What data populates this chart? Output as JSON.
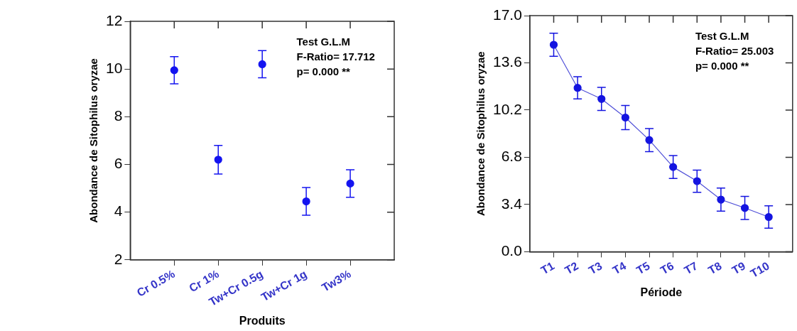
{
  "chart_data": [
    {
      "type": "scatter",
      "xlabel": "Produits",
      "ylabel": "Abondance de Sitophilus oryzae",
      "categories": [
        "Cr 0.5%",
        "Cr 1%",
        "Tw+Cr 0.5g",
        "Tw+Cr 1g",
        "Tw3%"
      ],
      "values": [
        9.95,
        6.2,
        10.2,
        4.45,
        5.2
      ],
      "errors": [
        0.57,
        0.6,
        0.57,
        0.58,
        0.58
      ],
      "color": "#1414f0",
      "ylim": [
        2,
        12
      ],
      "yticks": [
        2,
        4,
        6,
        8,
        10,
        12
      ],
      "grid": false,
      "legend": false,
      "marker": "circle",
      "annotations": [
        "Test G.L.M",
        "F-Ratio= 17.712",
        "p= 0.000 **"
      ]
    },
    {
      "type": "line",
      "xlabel": "Période",
      "ylabel": "Abondance de Sitophilus oryzae",
      "categories": [
        "T1",
        "T2",
        "T3",
        "T4",
        "T5",
        "T6",
        "T7",
        "T8",
        "T9",
        "T10"
      ],
      "values": [
        14.9,
        11.8,
        11.0,
        9.66,
        8.04,
        6.1,
        5.08,
        3.75,
        3.15,
        2.5
      ],
      "errors": [
        0.83,
        0.8,
        0.83,
        0.87,
        0.83,
        0.83,
        0.8,
        0.83,
        0.83,
        0.8
      ],
      "color": "#1414e0",
      "ylim": [
        0,
        17
      ],
      "yticks": [
        {
          "value": 0,
          "label": "0.0"
        },
        3.4,
        6.8,
        10.2,
        13.6,
        {
          "value": 17,
          "label": "17.0"
        }
      ],
      "grid": false,
      "legend": false,
      "marker": "circle",
      "line_style": "solid",
      "annotations": [
        "Test G.L.M",
        "F-Ratio= 25.003",
        "p= 0.000 **"
      ]
    }
  ]
}
